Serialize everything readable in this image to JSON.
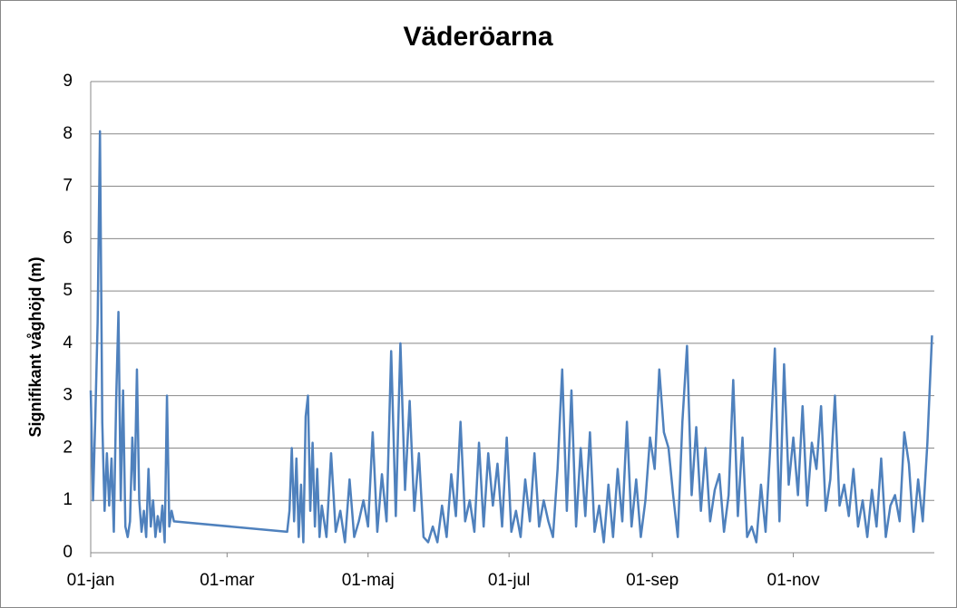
{
  "chart_data": {
    "type": "line",
    "title": "Väderöarna",
    "y_label": "Signifikant våghöjd (m)",
    "x": [
      0,
      1,
      2,
      3,
      4,
      5,
      6,
      7,
      8,
      9,
      10,
      11,
      12,
      13,
      14,
      15,
      16,
      17,
      18,
      19,
      20,
      21,
      22,
      23,
      24,
      25,
      26,
      27,
      28,
      29,
      30,
      31,
      32,
      33,
      34,
      35,
      36,
      85,
      86,
      87,
      88,
      89,
      90,
      91,
      92,
      93,
      94,
      95,
      96,
      97,
      98,
      99,
      100,
      102,
      104,
      106,
      108,
      110,
      112,
      114,
      116,
      118,
      120,
      122,
      124,
      126,
      128,
      130,
      132,
      134,
      136,
      138,
      140,
      142,
      144,
      146,
      148,
      150,
      152,
      154,
      156,
      158,
      160,
      162,
      164,
      166,
      168,
      170,
      172,
      174,
      176,
      178,
      180,
      182,
      184,
      186,
      188,
      190,
      192,
      194,
      196,
      198,
      200,
      202,
      204,
      206,
      208,
      210,
      212,
      214,
      216,
      218,
      220,
      222,
      224,
      226,
      228,
      230,
      232,
      234,
      236,
      238,
      240,
      242,
      244,
      246,
      248,
      250,
      252,
      254,
      256,
      258,
      260,
      262,
      264,
      266,
      268,
      270,
      272,
      274,
      276,
      278,
      280,
      282,
      284,
      286,
      288,
      290,
      292,
      294,
      296,
      298,
      300,
      302,
      304,
      306,
      308,
      310,
      312,
      314,
      316,
      318,
      320,
      322,
      324,
      326,
      328,
      330,
      332,
      334,
      336,
      338,
      340,
      342,
      344,
      346,
      348,
      350,
      352,
      354,
      356,
      358,
      360,
      362,
      364
    ],
    "series": [
      {
        "name": "Väderöarna",
        "color": "#4f81bd",
        "values": [
          3.1,
          1.0,
          2.6,
          4.4,
          8.05,
          2.5,
          0.8,
          1.9,
          0.9,
          1.8,
          0.4,
          2.9,
          4.6,
          1.0,
          3.1,
          0.5,
          0.3,
          0.6,
          2.2,
          1.2,
          3.5,
          1.0,
          0.4,
          0.8,
          0.3,
          1.6,
          0.5,
          1.0,
          0.3,
          0.7,
          0.4,
          0.9,
          0.2,
          3.0,
          0.5,
          0.8,
          0.6,
          0.4,
          0.8,
          2.0,
          0.6,
          1.8,
          0.3,
          1.3,
          0.2,
          2.6,
          3.0,
          0.8,
          2.1,
          0.5,
          1.6,
          0.3,
          0.9,
          0.3,
          1.9,
          0.4,
          0.8,
          0.2,
          1.4,
          0.3,
          0.6,
          1.0,
          0.5,
          2.3,
          0.4,
          1.5,
          0.6,
          3.85,
          0.7,
          4.0,
          1.2,
          2.9,
          0.8,
          1.9,
          0.3,
          0.2,
          0.5,
          0.2,
          0.9,
          0.3,
          1.5,
          0.7,
          2.5,
          0.6,
          1.0,
          0.4,
          2.1,
          0.5,
          1.9,
          0.9,
          1.7,
          0.5,
          2.2,
          0.4,
          0.8,
          0.3,
          1.4,
          0.6,
          1.9,
          0.5,
          1.0,
          0.6,
          0.3,
          1.6,
          3.5,
          0.8,
          3.1,
          0.5,
          2.0,
          0.7,
          2.3,
          0.4,
          0.9,
          0.2,
          1.3,
          0.3,
          1.6,
          0.6,
          2.5,
          0.5,
          1.4,
          0.3,
          1.0,
          2.2,
          1.6,
          3.5,
          2.3,
          2.0,
          1.1,
          0.3,
          2.5,
          3.95,
          1.1,
          2.4,
          0.8,
          2.0,
          0.6,
          1.2,
          1.5,
          0.4,
          1.1,
          3.3,
          0.7,
          2.2,
          0.3,
          0.5,
          0.2,
          1.3,
          0.4,
          2.0,
          3.9,
          0.6,
          3.6,
          1.3,
          2.2,
          1.1,
          2.8,
          0.9,
          2.1,
          1.6,
          2.8,
          0.8,
          1.4,
          3.0,
          0.9,
          1.3,
          0.7,
          1.6,
          0.5,
          1.0,
          0.3,
          1.2,
          0.5,
          1.8,
          0.3,
          0.9,
          1.1,
          0.6,
          2.3,
          1.7,
          0.4,
          1.4,
          0.6,
          2.1,
          4.15
        ]
      }
    ],
    "xlim": [
      0,
      365
    ],
    "xticks": [
      {
        "value": 0,
        "label": "01-jan"
      },
      {
        "value": 59,
        "label": "01-mar"
      },
      {
        "value": 120,
        "label": "01-maj"
      },
      {
        "value": 181,
        "label": "01-jul"
      },
      {
        "value": 243,
        "label": "01-sep"
      },
      {
        "value": 304,
        "label": "01-nov"
      }
    ],
    "ylim": [
      0,
      9
    ],
    "yticks": [
      0,
      1,
      2,
      3,
      4,
      5,
      6,
      7,
      8,
      9
    ],
    "grid": true
  }
}
